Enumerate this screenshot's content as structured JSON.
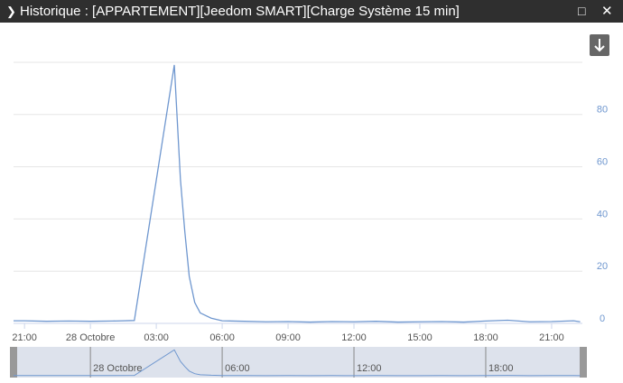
{
  "window": {
    "title": "Historique : [APPARTEMENT][Jeedom SMART][Charge Système 15 min]"
  },
  "chart_data": {
    "type": "line",
    "x": [
      -0.5,
      0,
      1,
      2,
      3,
      4,
      5,
      6.82,
      7.1,
      7.3,
      7.5,
      7.75,
      8,
      8.5,
      9,
      10,
      11,
      12,
      13,
      14,
      15,
      16,
      17,
      18,
      19,
      20,
      21,
      22,
      23,
      24,
      25,
      25.3
    ],
    "series": [
      {
        "color": "#6f97cf",
        "values": [
          1,
          1,
          0.8,
          0.9,
          0.8,
          0.9,
          1.1,
          99,
          55,
          35,
          18,
          8,
          4,
          2,
          1,
          0.8,
          0.6,
          0.7,
          0.5,
          0.7,
          0.6,
          0.8,
          0.5,
          0.6,
          0.7,
          0.5,
          0.9,
          1.2,
          0.6,
          0.7,
          1,
          0.6
        ]
      }
    ],
    "xlim": [
      -0.5,
      25.4
    ],
    "xticks": [
      {
        "value": 0,
        "label": "21:00"
      },
      {
        "value": 3,
        "label": "28 Octobre"
      },
      {
        "value": 6,
        "label": "03:00"
      },
      {
        "value": 9,
        "label": "06:00"
      },
      {
        "value": 12,
        "label": "09:00"
      },
      {
        "value": 15,
        "label": "12:00"
      },
      {
        "value": 18,
        "label": "15:00"
      },
      {
        "value": 21,
        "label": "18:00"
      },
      {
        "value": 24,
        "label": "21:00"
      }
    ],
    "ylim": [
      0,
      100
    ],
    "yticks": [
      0,
      20,
      40,
      60,
      80
    ],
    "grid": true
  }
}
